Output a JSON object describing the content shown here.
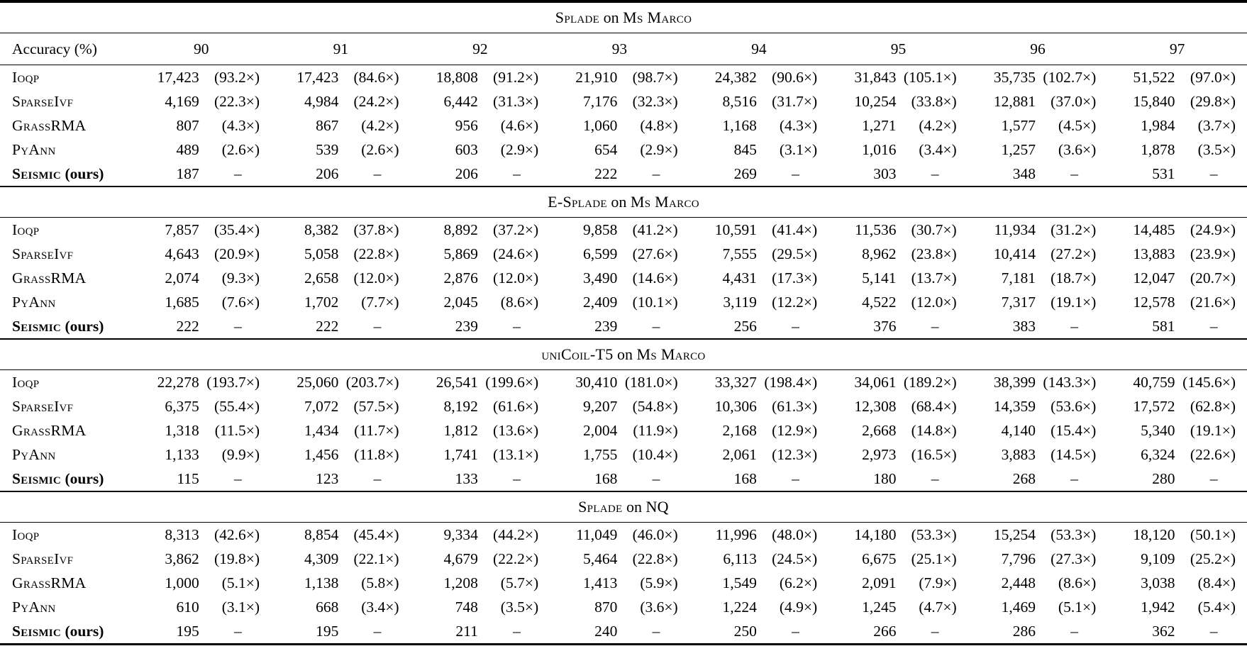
{
  "table": {
    "accuracy_label": "Accuracy (%)",
    "accuracies": [
      "90",
      "91",
      "92",
      "93",
      "94",
      "95",
      "96",
      "97"
    ],
    "dash": "–",
    "sections": [
      {
        "title": [
          "Splade",
          "on",
          "Ms Marco"
        ],
        "rows": [
          {
            "method": "Ioqp",
            "suffix": "",
            "bold": false,
            "cells": [
              [
                "17,423",
                "(93.2×)"
              ],
              [
                "17,423",
                "(84.6×)"
              ],
              [
                "18,808",
                "(91.2×)"
              ],
              [
                "21,910",
                "(98.7×)"
              ],
              [
                "24,382",
                "(90.6×)"
              ],
              [
                "31,843",
                "(105.1×)"
              ],
              [
                "35,735",
                "(102.7×)"
              ],
              [
                "51,522",
                "(97.0×)"
              ]
            ]
          },
          {
            "method": "SparseIvf",
            "suffix": "",
            "bold": false,
            "cells": [
              [
                "4,169",
                "(22.3×)"
              ],
              [
                "4,984",
                "(24.2×)"
              ],
              [
                "6,442",
                "(31.3×)"
              ],
              [
                "7,176",
                "(32.3×)"
              ],
              [
                "8,516",
                "(31.7×)"
              ],
              [
                "10,254",
                "(33.8×)"
              ],
              [
                "12,881",
                "(37.0×)"
              ],
              [
                "15,840",
                "(29.8×)"
              ]
            ]
          },
          {
            "method": "GrassRMA",
            "suffix": "",
            "bold": false,
            "cells": [
              [
                "807",
                "(4.3×)"
              ],
              [
                "867",
                "(4.2×)"
              ],
              [
                "956",
                "(4.6×)"
              ],
              [
                "1,060",
                "(4.8×)"
              ],
              [
                "1,168",
                "(4.3×)"
              ],
              [
                "1,271",
                "(4.2×)"
              ],
              [
                "1,577",
                "(4.5×)"
              ],
              [
                "1,984",
                "(3.7×)"
              ]
            ]
          },
          {
            "method": "PyAnn",
            "suffix": "",
            "bold": false,
            "cells": [
              [
                "489",
                "(2.6×)"
              ],
              [
                "539",
                "(2.6×)"
              ],
              [
                "603",
                "(2.9×)"
              ],
              [
                "654",
                "(2.9×)"
              ],
              [
                "845",
                "(3.1×)"
              ],
              [
                "1,016",
                "(3.4×)"
              ],
              [
                "1,257",
                "(3.6×)"
              ],
              [
                "1,878",
                "(3.5×)"
              ]
            ]
          },
          {
            "method": "Seismic",
            "suffix": " (ours)",
            "bold": true,
            "cells": [
              [
                "187",
                "–"
              ],
              [
                "206",
                "–"
              ],
              [
                "206",
                "–"
              ],
              [
                "222",
                "–"
              ],
              [
                "269",
                "–"
              ],
              [
                "303",
                "–"
              ],
              [
                "348",
                "–"
              ],
              [
                "531",
                "–"
              ]
            ]
          }
        ]
      },
      {
        "title": [
          "E-Splade",
          "on",
          "Ms Marco"
        ],
        "rows": [
          {
            "method": "Ioqp",
            "suffix": "",
            "bold": false,
            "cells": [
              [
                "7,857",
                "(35.4×)"
              ],
              [
                "8,382",
                "(37.8×)"
              ],
              [
                "8,892",
                "(37.2×)"
              ],
              [
                "9,858",
                "(41.2×)"
              ],
              [
                "10,591",
                "(41.4×)"
              ],
              [
                "11,536",
                "(30.7×)"
              ],
              [
                "11,934",
                "(31.2×)"
              ],
              [
                "14,485",
                "(24.9×)"
              ]
            ]
          },
          {
            "method": "SparseIvf",
            "suffix": "",
            "bold": false,
            "cells": [
              [
                "4,643",
                "(20.9×)"
              ],
              [
                "5,058",
                "(22.8×)"
              ],
              [
                "5,869",
                "(24.6×)"
              ],
              [
                "6,599",
                "(27.6×)"
              ],
              [
                "7,555",
                "(29.5×)"
              ],
              [
                "8,962",
                "(23.8×)"
              ],
              [
                "10,414",
                "(27.2×)"
              ],
              [
                "13,883",
                "(23.9×)"
              ]
            ]
          },
          {
            "method": "GrassRMA",
            "suffix": "",
            "bold": false,
            "cells": [
              [
                "2,074",
                "(9.3×)"
              ],
              [
                "2,658",
                "(12.0×)"
              ],
              [
                "2,876",
                "(12.0×)"
              ],
              [
                "3,490",
                "(14.6×)"
              ],
              [
                "4,431",
                "(17.3×)"
              ],
              [
                "5,141",
                "(13.7×)"
              ],
              [
                "7,181",
                "(18.7×)"
              ],
              [
                "12,047",
                "(20.7×)"
              ]
            ]
          },
          {
            "method": "PyAnn",
            "suffix": "",
            "bold": false,
            "cells": [
              [
                "1,685",
                "(7.6×)"
              ],
              [
                "1,702",
                "(7.7×)"
              ],
              [
                "2,045",
                "(8.6×)"
              ],
              [
                "2,409",
                "(10.1×)"
              ],
              [
                "3,119",
                "(12.2×)"
              ],
              [
                "4,522",
                "(12.0×)"
              ],
              [
                "7,317",
                "(19.1×)"
              ],
              [
                "12,578",
                "(21.6×)"
              ]
            ]
          },
          {
            "method": "Seismic",
            "suffix": " (ours)",
            "bold": true,
            "cells": [
              [
                "222",
                "–"
              ],
              [
                "222",
                "–"
              ],
              [
                "239",
                "–"
              ],
              [
                "239",
                "–"
              ],
              [
                "256",
                "–"
              ],
              [
                "376",
                "–"
              ],
              [
                "383",
                "–"
              ],
              [
                "581",
                "–"
              ]
            ]
          }
        ]
      },
      {
        "title": [
          "uniCoil-T5",
          "on",
          "Ms Marco"
        ],
        "rows": [
          {
            "method": "Ioqp",
            "suffix": "",
            "bold": false,
            "cells": [
              [
                "22,278",
                "(193.7×)"
              ],
              [
                "25,060",
                "(203.7×)"
              ],
              [
                "26,541",
                "(199.6×)"
              ],
              [
                "30,410",
                "(181.0×)"
              ],
              [
                "33,327",
                "(198.4×)"
              ],
              [
                "34,061",
                "(189.2×)"
              ],
              [
                "38,399",
                "(143.3×)"
              ],
              [
                "40,759",
                "(145.6×)"
              ]
            ]
          },
          {
            "method": "SparseIvf",
            "suffix": "",
            "bold": false,
            "cells": [
              [
                "6,375",
                "(55.4×)"
              ],
              [
                "7,072",
                "(57.5×)"
              ],
              [
                "8,192",
                "(61.6×)"
              ],
              [
                "9,207",
                "(54.8×)"
              ],
              [
                "10,306",
                "(61.3×)"
              ],
              [
                "12,308",
                "(68.4×)"
              ],
              [
                "14,359",
                "(53.6×)"
              ],
              [
                "17,572",
                "(62.8×)"
              ]
            ]
          },
          {
            "method": "GrassRMA",
            "suffix": "",
            "bold": false,
            "cells": [
              [
                "1,318",
                "(11.5×)"
              ],
              [
                "1,434",
                "(11.7×)"
              ],
              [
                "1,812",
                "(13.6×)"
              ],
              [
                "2,004",
                "(11.9×)"
              ],
              [
                "2,168",
                "(12.9×)"
              ],
              [
                "2,668",
                "(14.8×)"
              ],
              [
                "4,140",
                "(15.4×)"
              ],
              [
                "5,340",
                "(19.1×)"
              ]
            ]
          },
          {
            "method": "PyAnn",
            "suffix": "",
            "bold": false,
            "cells": [
              [
                "1,133",
                "(9.9×)"
              ],
              [
                "1,456",
                "(11.8×)"
              ],
              [
                "1,741",
                "(13.1×)"
              ],
              [
                "1,755",
                "(10.4×)"
              ],
              [
                "2,061",
                "(12.3×)"
              ],
              [
                "2,973",
                "(16.5×)"
              ],
              [
                "3,883",
                "(14.5×)"
              ],
              [
                "6,324",
                "(22.6×)"
              ]
            ]
          },
          {
            "method": "Seismic",
            "suffix": " (ours)",
            "bold": true,
            "cells": [
              [
                "115",
                "–"
              ],
              [
                "123",
                "–"
              ],
              [
                "133",
                "–"
              ],
              [
                "168",
                "–"
              ],
              [
                "168",
                "–"
              ],
              [
                "180",
                "–"
              ],
              [
                "268",
                "–"
              ],
              [
                "280",
                "–"
              ]
            ]
          }
        ]
      },
      {
        "title": [
          "Splade",
          "on",
          "NQ"
        ],
        "rows": [
          {
            "method": "Ioqp",
            "suffix": "",
            "bold": false,
            "cells": [
              [
                "8,313",
                "(42.6×)"
              ],
              [
                "8,854",
                "(45.4×)"
              ],
              [
                "9,334",
                "(44.2×)"
              ],
              [
                "11,049",
                "(46.0×)"
              ],
              [
                "11,996",
                "(48.0×)"
              ],
              [
                "14,180",
                "(53.3×)"
              ],
              [
                "15,254",
                "(53.3×)"
              ],
              [
                "18,120",
                "(50.1×)"
              ]
            ]
          },
          {
            "method": "SparseIvf",
            "suffix": "",
            "bold": false,
            "cells": [
              [
                "3,862",
                "(19.8×)"
              ],
              [
                "4,309",
                "(22.1×)"
              ],
              [
                "4,679",
                "(22.2×)"
              ],
              [
                "5,464",
                "(22.8×)"
              ],
              [
                "6,113",
                "(24.5×)"
              ],
              [
                "6,675",
                "(25.1×)"
              ],
              [
                "7,796",
                "(27.3×)"
              ],
              [
                "9,109",
                "(25.2×)"
              ]
            ]
          },
          {
            "method": "GrassRMA",
            "suffix": "",
            "bold": false,
            "cells": [
              [
                "1,000",
                "(5.1×)"
              ],
              [
                "1,138",
                "(5.8×)"
              ],
              [
                "1,208",
                "(5.7×)"
              ],
              [
                "1,413",
                "(5.9×)"
              ],
              [
                "1,549",
                "(6.2×)"
              ],
              [
                "2,091",
                "(7.9×)"
              ],
              [
                "2,448",
                "(8.6×)"
              ],
              [
                "3,038",
                "(8.4×)"
              ]
            ]
          },
          {
            "method": "PyAnn",
            "suffix": "",
            "bold": false,
            "cells": [
              [
                "610",
                "(3.1×)"
              ],
              [
                "668",
                "(3.4×)"
              ],
              [
                "748",
                "(3.5×)"
              ],
              [
                "870",
                "(3.6×)"
              ],
              [
                "1,224",
                "(4.9×)"
              ],
              [
                "1,245",
                "(4.7×)"
              ],
              [
                "1,469",
                "(5.1×)"
              ],
              [
                "1,942",
                "(5.4×)"
              ]
            ]
          },
          {
            "method": "Seismic",
            "suffix": " (ours)",
            "bold": true,
            "cells": [
              [
                "195",
                "–"
              ],
              [
                "195",
                "–"
              ],
              [
                "211",
                "–"
              ],
              [
                "240",
                "–"
              ],
              [
                "250",
                "–"
              ],
              [
                "266",
                "–"
              ],
              [
                "286",
                "–"
              ],
              [
                "362",
                "–"
              ]
            ]
          }
        ]
      }
    ]
  }
}
